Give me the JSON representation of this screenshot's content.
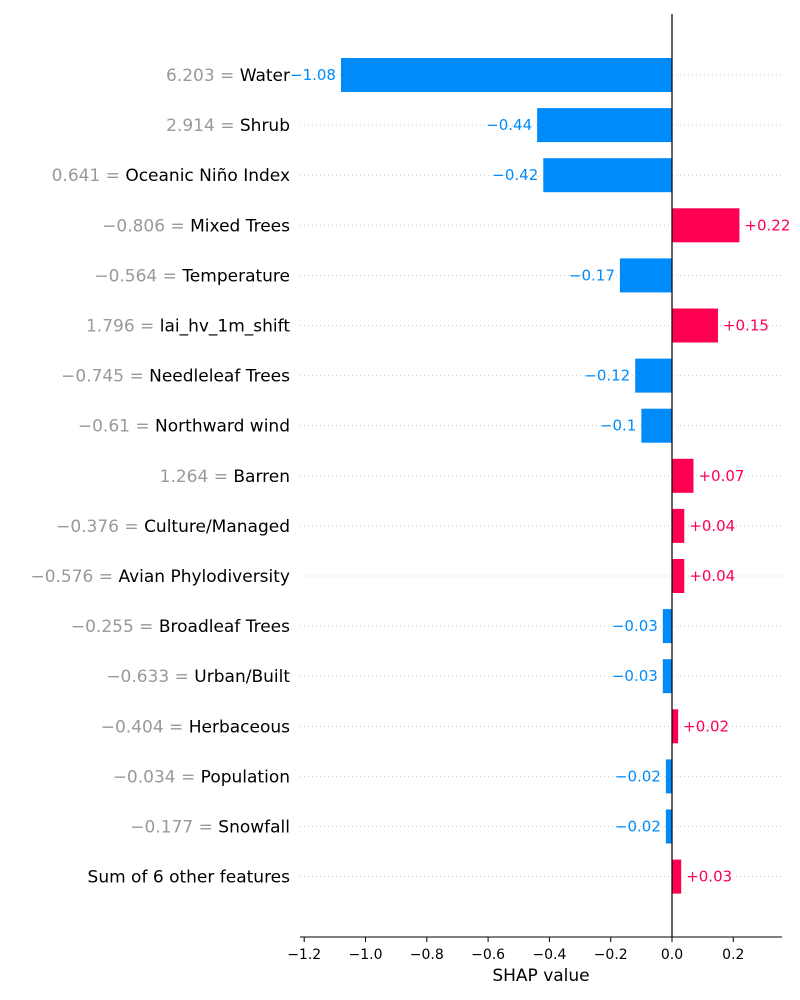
{
  "chart_data": {
    "type": "bar",
    "orientation": "horizontal",
    "xlabel": "SHAP value",
    "xlim": [
      -1.2,
      0.35
    ],
    "xticks": [
      -1.2,
      -1.0,
      -0.8,
      -0.6,
      -0.4,
      -0.2,
      0.0,
      0.2
    ],
    "xtick_labels": [
      "−1.2",
      "−1.0",
      "−0.8",
      "−0.6",
      "−0.4",
      "−0.2",
      "0.0",
      "0.2"
    ],
    "grid": "horizontal dotted",
    "colors": {
      "positive": "#ff0051",
      "negative": "#008bfb",
      "feature_value": "#999999"
    },
    "features": [
      {
        "value_text": "6.203",
        "name": "Water",
        "shap": -1.08,
        "label": "−1.08"
      },
      {
        "value_text": "2.914",
        "name": "Shrub",
        "shap": -0.44,
        "label": "−0.44"
      },
      {
        "value_text": "0.641",
        "name": "Oceanic Niño Index",
        "shap": -0.42,
        "label": "−0.42"
      },
      {
        "value_text": "−0.806",
        "name": "Mixed Trees",
        "shap": 0.22,
        "label": "+0.22"
      },
      {
        "value_text": "−0.564",
        "name": "Temperature",
        "shap": -0.17,
        "label": "−0.17"
      },
      {
        "value_text": "1.796",
        "name": "lai_hv_1m_shift",
        "shap": 0.15,
        "label": "+0.15"
      },
      {
        "value_text": "−0.745",
        "name": "Needleleaf Trees",
        "shap": -0.12,
        "label": "−0.12"
      },
      {
        "value_text": "−0.61",
        "name": "Northward wind",
        "shap": -0.1,
        "label": "−0.1"
      },
      {
        "value_text": "1.264",
        "name": "Barren",
        "shap": 0.07,
        "label": "+0.07"
      },
      {
        "value_text": "−0.376",
        "name": "Culture/Managed",
        "shap": 0.04,
        "label": "+0.04"
      },
      {
        "value_text": "−0.576",
        "name": "Avian Phylodiversity",
        "shap": 0.04,
        "label": "+0.04"
      },
      {
        "value_text": "−0.255",
        "name": "Broadleaf Trees",
        "shap": -0.03,
        "label": "−0.03"
      },
      {
        "value_text": "−0.633",
        "name": "Urban/Built",
        "shap": -0.03,
        "label": "−0.03"
      },
      {
        "value_text": "−0.404",
        "name": "Herbaceous",
        "shap": 0.02,
        "label": "+0.02"
      },
      {
        "value_text": "−0.034",
        "name": "Population",
        "shap": -0.02,
        "label": "−0.02"
      },
      {
        "value_text": "−0.177",
        "name": "Snowfall",
        "shap": -0.02,
        "label": "−0.02"
      },
      {
        "value_text": "",
        "name": "Sum of 6 other features",
        "shap": 0.03,
        "label": "+0.03"
      }
    ]
  }
}
